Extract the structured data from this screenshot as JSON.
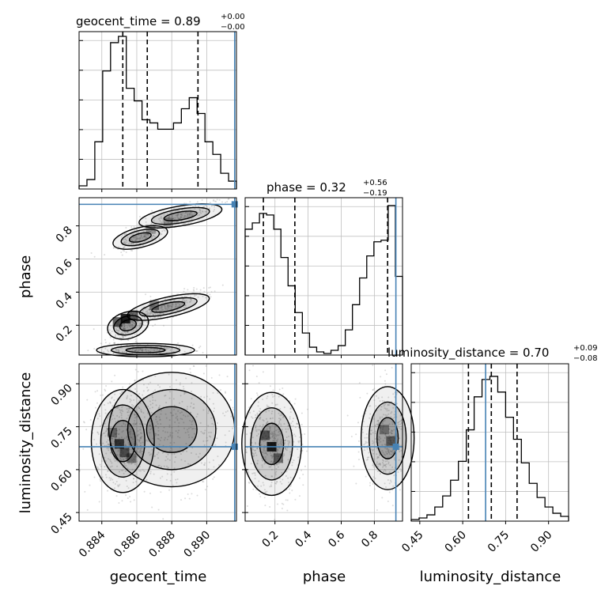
{
  "chart_data": {
    "type": "corner",
    "parameters": [
      "geocent_time",
      "phase",
      "luminosity_distance"
    ],
    "truths": {
      "geocent_time": 0.8916,
      "phase": 0.93,
      "luminosity_distance": 0.68
    },
    "colors": {
      "truth": "#4682b4",
      "hist": "#000000",
      "grid": "#c0c0c0",
      "density": "#000000"
    },
    "grid": true,
    "axis_labels": {
      "x": [
        "geocent_time",
        "phase",
        "luminosity_distance"
      ],
      "y": [
        "phase",
        "luminosity_distance"
      ]
    },
    "titles": [
      {
        "name": "geocent_time",
        "text": "geocent_time = 0.89",
        "plus": "+0.00",
        "minus": "−0.00"
      },
      {
        "name": "phase",
        "text": "phase = 0.32",
        "plus": "+0.56",
        "minus": "−0.19"
      },
      {
        "name": "luminosity_distance",
        "text": "luminosity_distance = 0.70",
        "plus": "+0.09",
        "minus": "−0.08"
      }
    ],
    "ranges": {
      "geocent_time": [
        0.8827,
        0.8917
      ],
      "phase": [
        0.02,
        0.97
      ],
      "luminosity_distance": [
        0.42,
        0.97
      ]
    },
    "ticks": {
      "geocent_time": [
        {
          "v": 0.884,
          "label": "0.884"
        },
        {
          "v": 0.886,
          "label": "0.886"
        },
        {
          "v": 0.888,
          "label": "0.888"
        },
        {
          "v": 0.89,
          "label": "0.890"
        }
      ],
      "phase": [
        {
          "v": 0.2,
          "label": "0.2"
        },
        {
          "v": 0.4,
          "label": "0.4"
        },
        {
          "v": 0.6,
          "label": "0.6"
        },
        {
          "v": 0.8,
          "label": "0.8"
        }
      ],
      "luminosity_distance": [
        {
          "v": 0.45,
          "label": "0.45"
        },
        {
          "v": 0.6,
          "label": "0.60"
        },
        {
          "v": 0.75,
          "label": "0.75"
        },
        {
          "v": 0.9,
          "label": "0.90"
        }
      ]
    },
    "quantiles": {
      "geocent_time": [
        0.8852,
        0.8866,
        0.8895
      ],
      "phase": [
        0.13,
        0.32,
        0.88
      ],
      "luminosity_distance": [
        0.62,
        0.7,
        0.79
      ]
    },
    "histograms": {
      "geocent_time": [
        0.02,
        0.06,
        0.3,
        0.75,
        0.93,
        0.97,
        0.64,
        0.56,
        0.44,
        0.42,
        0.38,
        0.38,
        0.42,
        0.51,
        0.58,
        0.48,
        0.3,
        0.22,
        0.1,
        0.05
      ],
      "phase": [
        0.8,
        0.84,
        0.9,
        0.89,
        0.8,
        0.62,
        0.44,
        0.27,
        0.14,
        0.05,
        0.02,
        0.01,
        0.03,
        0.06,
        0.16,
        0.32,
        0.49,
        0.63,
        0.72,
        0.73,
        0.95,
        0.5
      ],
      "luminosity_distance": [
        0.01,
        0.02,
        0.04,
        0.09,
        0.16,
        0.26,
        0.38,
        0.58,
        0.79,
        0.9,
        0.92,
        0.82,
        0.66,
        0.52,
        0.37,
        0.24,
        0.15,
        0.09,
        0.05,
        0.03
      ]
    },
    "density_cells": [
      {
        "pair": "phase_vs_geocent_time",
        "x": 0.88535,
        "y": 0.24,
        "v": 1.0
      },
      {
        "pair": "phase_vs_geocent_time",
        "x": 0.8849,
        "y": 0.22,
        "v": 0.7
      },
      {
        "pair": "phase_vs_geocent_time",
        "x": 0.8858,
        "y": 0.26,
        "v": 0.6
      },
      {
        "pair": "phase_vs_geocent_time",
        "x": 0.887,
        "y": 0.32,
        "v": 0.5
      },
      {
        "pair": "phase_vs_geocent_time",
        "x": 0.8878,
        "y": 0.82,
        "v": 0.35
      },
      {
        "pair": "phase_vs_geocent_time",
        "x": 0.8868,
        "y": 0.78,
        "v": 0.3
      },
      {
        "pair": "luminosity_distance_vs_geocent_time",
        "x": 0.885,
        "y": 0.69,
        "v": 0.8
      },
      {
        "pair": "luminosity_distance_vs_geocent_time",
        "x": 0.8853,
        "y": 0.66,
        "v": 0.6
      },
      {
        "pair": "luminosity_distance_vs_geocent_time",
        "x": 0.8857,
        "y": 0.64,
        "v": 0.5
      },
      {
        "pair": "luminosity_distance_vs_geocent_time",
        "x": 0.8846,
        "y": 0.73,
        "v": 0.4
      },
      {
        "pair": "luminosity_distance_vs_phase",
        "x": 0.18,
        "y": 0.68,
        "v": 1.0
      },
      {
        "pair": "luminosity_distance_vs_phase",
        "x": 0.14,
        "y": 0.72,
        "v": 0.6
      },
      {
        "pair": "luminosity_distance_vs_phase",
        "x": 0.22,
        "y": 0.64,
        "v": 0.55
      },
      {
        "pair": "luminosity_distance_vs_phase",
        "x": 0.9,
        "y": 0.7,
        "v": 0.55
      },
      {
        "pair": "luminosity_distance_vs_phase",
        "x": 0.86,
        "y": 0.74,
        "v": 0.4
      }
    ]
  }
}
